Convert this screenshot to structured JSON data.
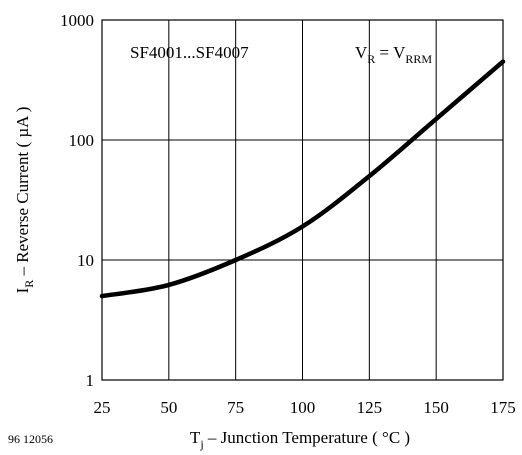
{
  "chart_data": {
    "type": "line",
    "x_scale": "linear",
    "y_scale": "log",
    "xlim": [
      25,
      175
    ],
    "ylim": [
      1,
      1000
    ],
    "x_ticks": [
      25,
      50,
      75,
      100,
      125,
      150,
      175
    ],
    "x_tick_labels": [
      "25",
      "50",
      "75",
      "100",
      "125",
      "150",
      "175"
    ],
    "y_ticks": [
      1,
      10,
      100,
      1000
    ],
    "y_tick_labels": [
      "1",
      "10",
      "100",
      "1000"
    ],
    "grid": true,
    "xlabel": {
      "main": "T",
      "sub": "j",
      "rest": " – Junction Temperature ( °C )"
    },
    "ylabel": {
      "main": "I",
      "sub": "R",
      "rest": " – Reverse Current ( µA )"
    },
    "annotations": {
      "part_range": "SF4001...SF4007",
      "condition": {
        "v1": "V",
        "v1_sub": "R",
        "eq": " = V",
        "v2_sub": "RRM"
      },
      "figure_number": "96 12056"
    },
    "series": [
      {
        "x": [
          25,
          50,
          75,
          100,
          125,
          150,
          175
        ],
        "y": [
          5,
          6.2,
          10,
          19,
          50,
          150,
          450
        ]
      }
    ]
  }
}
